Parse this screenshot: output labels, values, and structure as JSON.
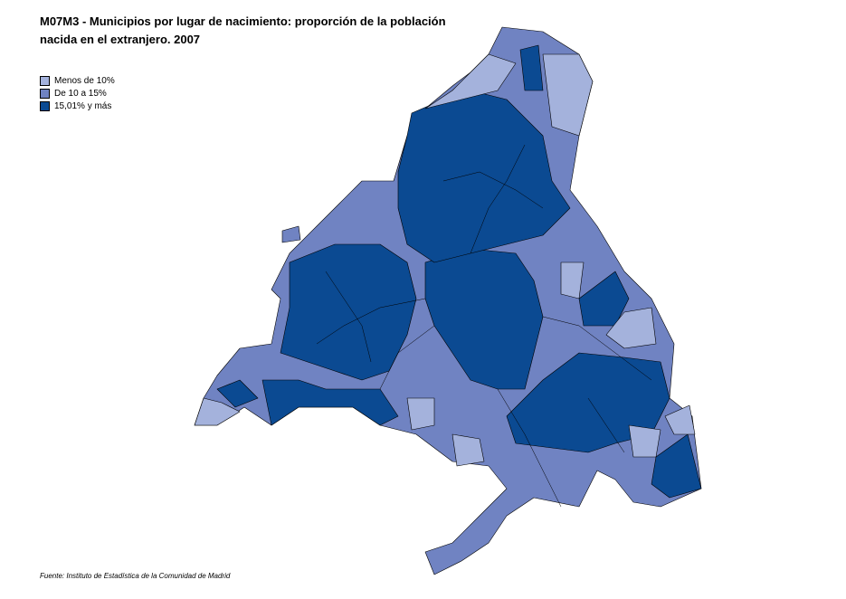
{
  "header": {
    "title": [
      "M07M3 - Municipios por lugar de nacimiento:  proporción de la población",
      "nacida en el extranjero. 2007"
    ]
  },
  "legend": {
    "items": [
      {
        "label": "Menos de 10%",
        "color": "#a4b2dc"
      },
      {
        "label": "De 10 a 15%",
        "color": "#7083c2"
      },
      {
        "label": "15,01% y más",
        "color": "#0b4a92"
      }
    ]
  },
  "source": "Fuente: Instituto de Estadística de la Comunidad de Madrid"
}
